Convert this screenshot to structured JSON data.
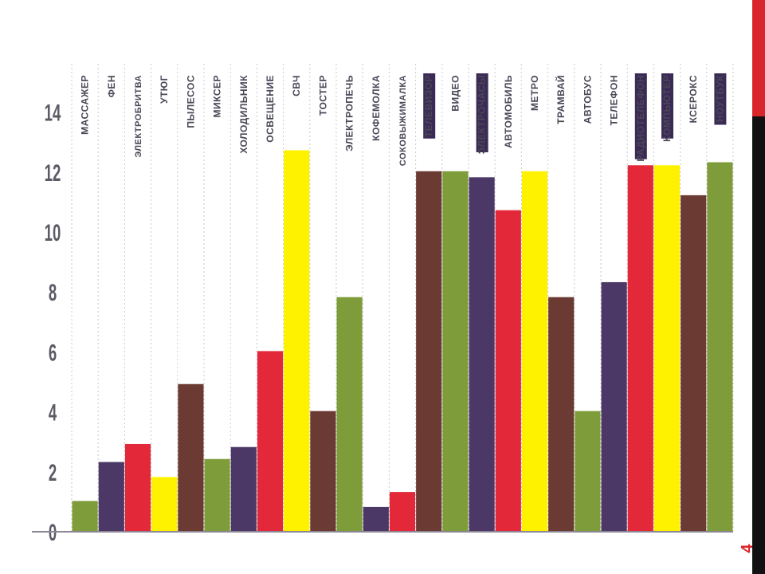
{
  "slide": {
    "number": "4",
    "accent_red": "#d9262c",
    "strip_black": "#111111"
  },
  "chart_data": {
    "type": "bar",
    "title": "",
    "xlabel": "",
    "ylabel": "",
    "ylim": [
      0,
      15
    ],
    "yticks": [
      0,
      2,
      4,
      6,
      8,
      10,
      12,
      14
    ],
    "grid": "vertical dotted lines between categories",
    "legend": "none",
    "label_placement": "rotated text at top of each column",
    "palette": {
      "green": "#7e9c3a",
      "purple": "#4c3866",
      "red": "#e3283a",
      "yellow": "#fff200",
      "brown": "#6b3a32"
    },
    "categories": [
      "МАССАЖЕР",
      "ФЕН",
      "ЭЛЕКТРОБРИТВА",
      "УТЮГ",
      "ПЫЛЕСОС",
      "МИКСЕР",
      "ХОЛОДИЛЬНИК",
      "ОСВЕЩЕНИЕ",
      "СВЧ",
      "ТОСТЕР",
      "ЭЛЕКТРОПЕЧЬ",
      "КОФЕМОЛКА",
      "СОКОВЫЖИМАЛКА",
      "ТЕЛЕВИЗОР",
      "ВИДЕО",
      "ЭЛЕКТРОЧАСЫ",
      "АВТОМОБИЛЬ",
      "МЕТРО",
      "ТРАМВАЙ",
      "АВТОБУС",
      "ТЕЛЕФОН",
      "РАДИОТЕЛЕФОН",
      "КОМПЬЮТЕР",
      "КСЕРОКС",
      "НОУТБУК"
    ],
    "values": [
      1.0,
      2.3,
      2.9,
      1.8,
      4.9,
      2.4,
      2.8,
      6.0,
      12.7,
      4.0,
      7.8,
      0.8,
      1.3,
      12.0,
      12.0,
      11.8,
      10.7,
      12.0,
      7.8,
      4.0,
      8.3,
      12.2,
      12.2,
      11.2,
      12.3
    ],
    "bar_colors": [
      "green",
      "purple",
      "red",
      "yellow",
      "brown",
      "green",
      "purple",
      "red",
      "yellow",
      "brown",
      "green",
      "purple",
      "red",
      "brown",
      "green",
      "purple",
      "red",
      "yellow",
      "brown",
      "green",
      "purple",
      "red",
      "yellow",
      "brown",
      "green"
    ],
    "highlighted_labels": [
      "ТЕЛЕВИЗОР",
      "ЭЛЕКТРОЧАСЫ",
      "РАДИОТЕЛЕФОН",
      "КОМПЬЮТЕР",
      "НОУТБУК"
    ]
  }
}
